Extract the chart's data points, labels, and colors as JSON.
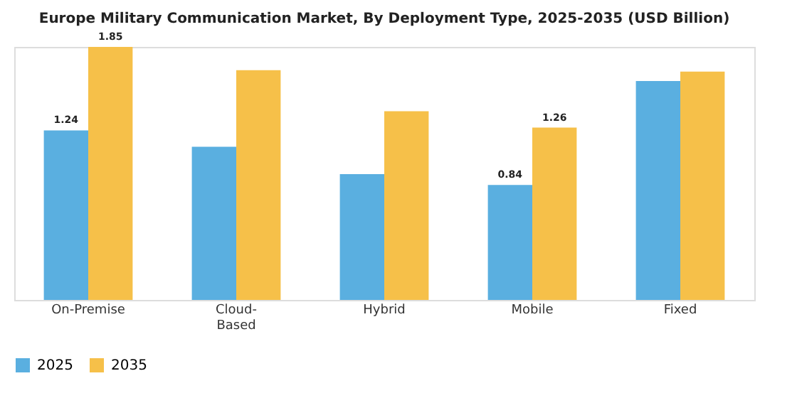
{
  "chart_data": {
    "type": "bar",
    "title": "Europe Military Communication Market, By Deployment Type, 2025-2035 (USD Billion)",
    "categories": [
      "On-Premise",
      "Cloud-\nBased",
      "Hybrid",
      "Mobile",
      "Fixed"
    ],
    "series": [
      {
        "name": "2025",
        "color": "#5aafe0",
        "values": [
          1.24,
          1.12,
          0.92,
          0.84,
          1.6
        ],
        "value_labels": [
          "1.24",
          null,
          null,
          "0.84",
          null
        ]
      },
      {
        "name": "2035",
        "color": "#f6c049",
        "values": [
          1.85,
          1.68,
          1.38,
          1.26,
          1.67
        ],
        "value_labels": [
          "1.85",
          null,
          null,
          "1.26",
          null
        ]
      }
    ],
    "legend": "bottom",
    "grid": false
  }
}
